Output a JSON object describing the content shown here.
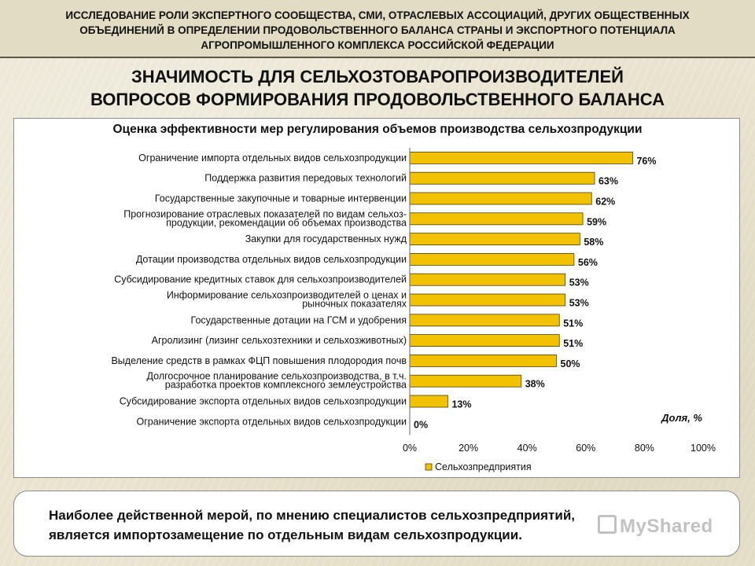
{
  "header": {
    "lines": [
      "ИССЛЕДОВАНИЕ РОЛИ ЭКСПЕРТНОГО СООБЩЕСТВА, СМИ, ОТРАСЛЕВЫХ АССОЦИАЦИЙ, ДРУГИХ ОБЩЕСТВЕННЫХ",
      "ОБЪЕДИНЕНИЙ В ОПРЕДЕЛЕНИИ ПРОДОВОЛЬСТВЕННОГО БАЛАНСА СТРАНЫ И ЭКСПОРТНОГО ПОТЕНЦИАЛА",
      "АГРОПРОМЫШЛЕННОГО КОМПЛЕКСА РОССИЙСКОЙ ФЕДЕРАЦИИ"
    ]
  },
  "main_title": {
    "line1": "ЗНАЧИМОСТЬ ДЛЯ СЕЛЬХОЗТОВАРОПРОИЗВОДИТЕЛЕЙ",
    "line2": "ВОПРОСОВ ФОРМИРОВАНИЯ ПРОДОВОЛЬСТВЕННОГО БАЛАНСА"
  },
  "chart_data": {
    "type": "bar",
    "orientation": "horizontal",
    "title": "Оценка эффективности мер регулирования объемов производства сельхозпродукции",
    "categories": [
      [
        "Ограничение импорта отдельных видов сельхозпродукции"
      ],
      [
        "Поддержка развития передовых технологий"
      ],
      [
        "Государственные закупочные и товарные интервенции"
      ],
      [
        "Прогнозирование отраслевых показателей по видам сельхоз-",
        "продукции, рекомендации об объемах производства"
      ],
      [
        "Закупки для государственных нужд"
      ],
      [
        "Дотации производства отдельных видов сельхозпродукции"
      ],
      [
        "Субсидирование кредитных ставок для сельхозпроизводителей"
      ],
      [
        "Информирование сельхозпроизводителей о ценах и",
        "рыночных показателях"
      ],
      [
        "Государственные дотации на ГСМ и удобрения"
      ],
      [
        "Агролизинг (лизинг сельхозтехники и сельхозживотных)"
      ],
      [
        "Выделение средств в рамках ФЦП повышения плодородия почв"
      ],
      [
        "Долгосрочное планирование сельхозпроизводства, в т.ч.",
        "разработка проектов комплексного землеустройства"
      ],
      [
        "Субсидирование экспорта отдельных видов сельхозпродукции"
      ],
      [
        "Ограничение экспорта отдельных видов сельхозпродукции"
      ]
    ],
    "series": [
      {
        "name": "Сельхозпредприятия",
        "values": [
          76,
          63,
          62,
          59,
          58,
          56,
          53,
          53,
          51,
          51,
          50,
          38,
          13,
          0
        ],
        "labels": [
          "76%",
          "63%",
          "62%",
          "59%",
          "58%",
          "56%",
          "53%",
          "53%",
          "51%",
          "51%",
          "50%",
          "38%",
          "13%",
          "0%"
        ],
        "color": "#f2c200",
        "border_color": "#4a4000"
      }
    ],
    "xlim": [
      0,
      100
    ],
    "x_ticks": [
      "0%",
      "20%",
      "40%",
      "60%",
      "80%",
      "100%"
    ],
    "axis_annotation": "Доля, %",
    "grid": false,
    "legend_position": "bottom"
  },
  "bottom": {
    "line1": "Наиболее действенной мерой, по мнению специалистов сельхозпредприятий,",
    "line2": "является импортозамещение по отдельным видам сельхозпродукции."
  },
  "watermark": "MyShared"
}
